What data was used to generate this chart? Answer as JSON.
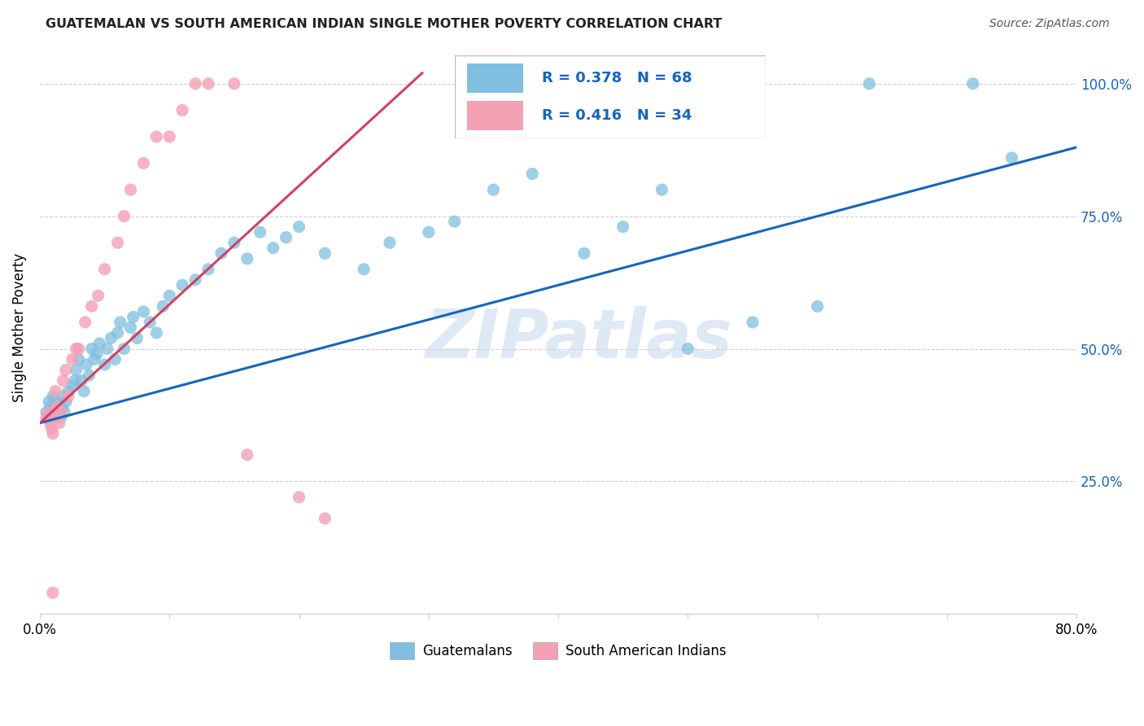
{
  "title": "GUATEMALAN VS SOUTH AMERICAN INDIAN SINGLE MOTHER POVERTY CORRELATION CHART",
  "source": "Source: ZipAtlas.com",
  "ylabel": "Single Mother Poverty",
  "y_ticks": [
    0.25,
    0.5,
    0.75,
    1.0
  ],
  "y_tick_labels_right": [
    "25.0%",
    "50.0%",
    "75.0%",
    "100.0%"
  ],
  "xlim": [
    0.0,
    0.8
  ],
  "ylim": [
    0.0,
    1.08
  ],
  "blue_R": 0.378,
  "blue_N": 68,
  "pink_R": 0.416,
  "pink_N": 34,
  "blue_color": "#7fbfdf",
  "pink_color": "#f4a0b5",
  "trendline_blue": "#1565c0",
  "trendline_pink": "#d44060",
  "watermark": "ZIPatlas",
  "legend_blue_label": "Guatemalans",
  "legend_pink_label": "South American Indians",
  "blue_trend_x": [
    0.0,
    0.8
  ],
  "blue_trend_y": [
    0.36,
    0.88
  ],
  "pink_trend_x": [
    0.0,
    0.295
  ],
  "pink_trend_y": [
    0.36,
    1.02
  ],
  "blue_x": [
    0.005,
    0.007,
    0.008,
    0.009,
    0.01,
    0.011,
    0.012,
    0.013,
    0.015,
    0.016,
    0.017,
    0.018,
    0.019,
    0.02,
    0.022,
    0.025,
    0.027,
    0.028,
    0.03,
    0.032,
    0.034,
    0.036,
    0.038,
    0.04,
    0.042,
    0.044,
    0.046,
    0.05,
    0.052,
    0.055,
    0.058,
    0.06,
    0.062,
    0.065,
    0.07,
    0.072,
    0.075,
    0.08,
    0.085,
    0.09,
    0.095,
    0.1,
    0.11,
    0.12,
    0.13,
    0.14,
    0.15,
    0.16,
    0.17,
    0.18,
    0.19,
    0.2,
    0.22,
    0.25,
    0.27,
    0.3,
    0.32,
    0.35,
    0.38,
    0.42,
    0.45,
    0.48,
    0.5,
    0.55,
    0.6,
    0.64,
    0.72,
    0.75
  ],
  "blue_y": [
    0.38,
    0.4,
    0.39,
    0.37,
    0.41,
    0.38,
    0.39,
    0.4,
    0.38,
    0.37,
    0.39,
    0.41,
    0.38,
    0.4,
    0.42,
    0.43,
    0.44,
    0.46,
    0.48,
    0.44,
    0.42,
    0.47,
    0.45,
    0.5,
    0.48,
    0.49,
    0.51,
    0.47,
    0.5,
    0.52,
    0.48,
    0.53,
    0.55,
    0.5,
    0.54,
    0.56,
    0.52,
    0.57,
    0.55,
    0.53,
    0.58,
    0.6,
    0.62,
    0.63,
    0.65,
    0.68,
    0.7,
    0.67,
    0.72,
    0.69,
    0.71,
    0.73,
    0.68,
    0.65,
    0.7,
    0.72,
    0.74,
    0.8,
    0.83,
    0.68,
    0.73,
    0.8,
    0.5,
    0.55,
    0.58,
    1.0,
    1.0,
    0.86
  ],
  "pink_x": [
    0.005,
    0.007,
    0.008,
    0.009,
    0.01,
    0.011,
    0.012,
    0.013,
    0.015,
    0.016,
    0.018,
    0.02,
    0.022,
    0.025,
    0.028,
    0.03,
    0.035,
    0.04,
    0.045,
    0.05,
    0.06,
    0.065,
    0.07,
    0.08,
    0.09,
    0.1,
    0.11,
    0.12,
    0.13,
    0.15,
    0.16,
    0.2,
    0.22,
    0.01
  ],
  "pink_y": [
    0.37,
    0.38,
    0.36,
    0.35,
    0.34,
    0.37,
    0.42,
    0.39,
    0.36,
    0.38,
    0.44,
    0.46,
    0.41,
    0.48,
    0.5,
    0.5,
    0.55,
    0.58,
    0.6,
    0.65,
    0.7,
    0.75,
    0.8,
    0.85,
    0.9,
    0.9,
    0.95,
    1.0,
    1.0,
    1.0,
    0.3,
    0.22,
    0.18,
    0.04
  ]
}
